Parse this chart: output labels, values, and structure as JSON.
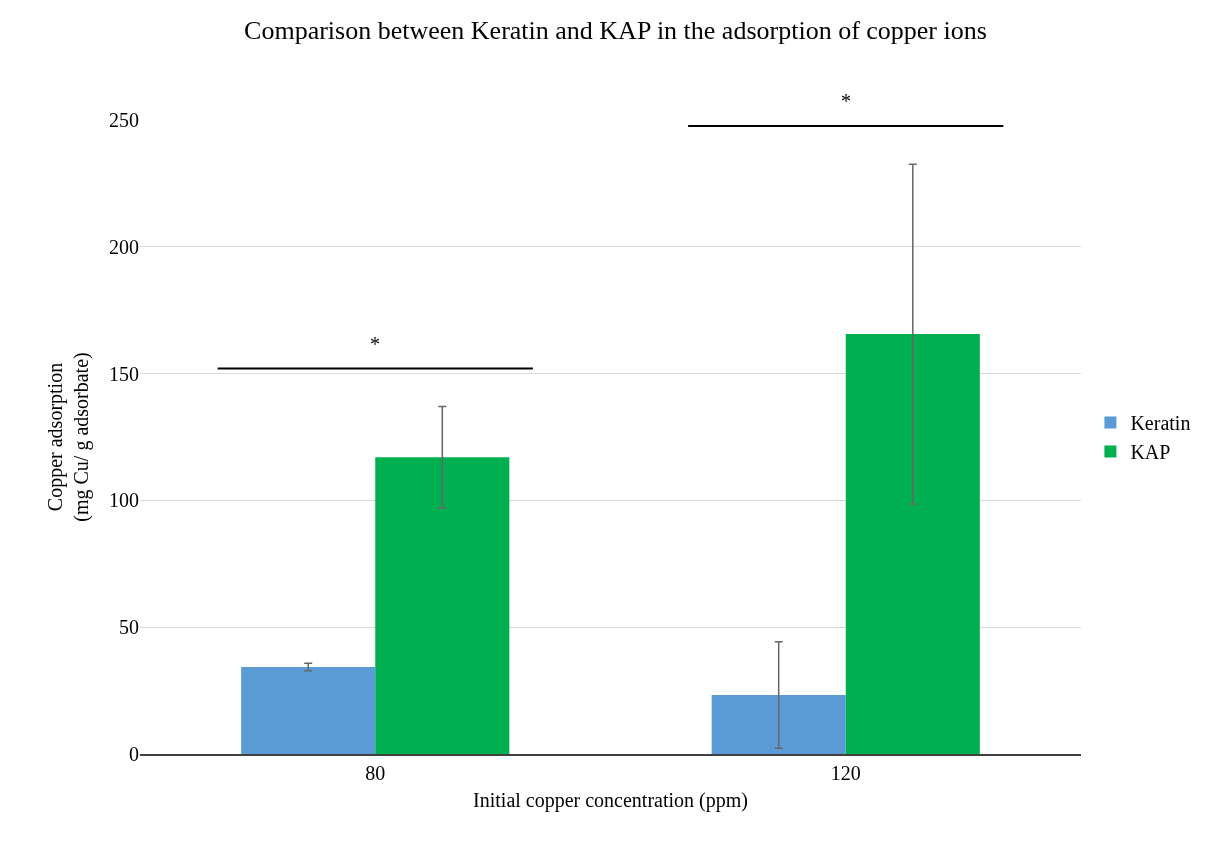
{
  "chart_data": {
    "type": "bar",
    "title": "Comparison between Keratin and KAP in the adsorption of copper ions",
    "xlabel": "Initial copper concentration (ppm)",
    "ylabel": "Copper adsorption\n(mg Cu/ g adsorbate)",
    "categories": [
      "80",
      "120"
    ],
    "series": [
      {
        "name": "Keratin",
        "color": "#5b9bd5",
        "values": [
          34.3,
          23.3
        ],
        "errors": [
          1.5,
          21
        ]
      },
      {
        "name": "KAP",
        "color": "#00b050",
        "values": [
          117,
          165.6
        ],
        "errors": [
          20,
          67
        ]
      }
    ],
    "annotations": [
      "*",
      "*"
    ],
    "ylim": [
      0,
      250
    ],
    "yticks": [
      0,
      50,
      100,
      150,
      200,
      250
    ],
    "grid": "y",
    "legend": "right"
  }
}
